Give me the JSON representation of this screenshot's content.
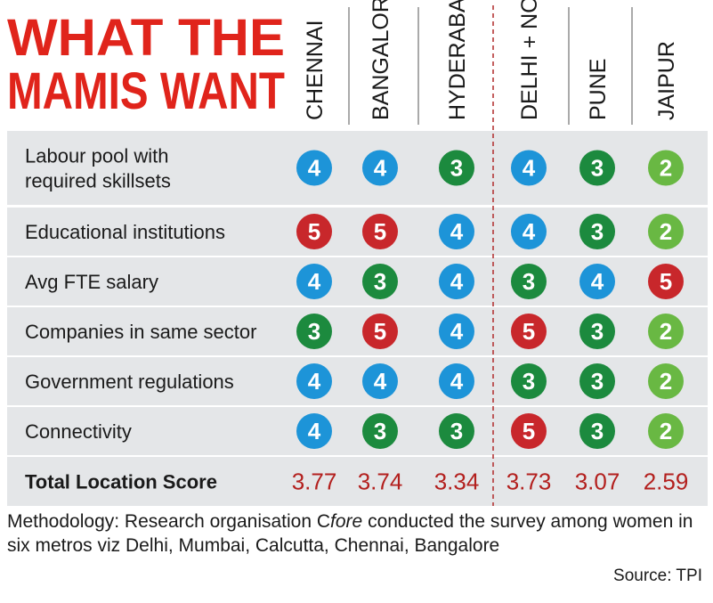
{
  "chart_data": {
    "type": "table",
    "title_lines": [
      "WHAT THE",
      "MAMIS WANT"
    ],
    "columns": [
      "CHENNAI",
      "BANGALORE",
      "HYDERABAD",
      "DELHI + NCR",
      "PUNE",
      "JAIPUR"
    ],
    "rows": [
      {
        "label_lines": [
          "Labour pool with",
          "required skillsets"
        ],
        "values": [
          4,
          4,
          3,
          4,
          3,
          2
        ]
      },
      {
        "label_lines": [
          "Educational institutions"
        ],
        "values": [
          5,
          5,
          4,
          4,
          3,
          2
        ]
      },
      {
        "label_lines": [
          "Avg FTE salary"
        ],
        "values": [
          4,
          3,
          4,
          3,
          4,
          5
        ]
      },
      {
        "label_lines": [
          "Companies in same sector"
        ],
        "values": [
          3,
          5,
          4,
          5,
          3,
          2
        ]
      },
      {
        "label_lines": [
          "Government regulations"
        ],
        "values": [
          4,
          4,
          4,
          3,
          3,
          2
        ]
      },
      {
        "label_lines": [
          "Connectivity"
        ],
        "values": [
          4,
          3,
          3,
          5,
          3,
          2
        ]
      }
    ],
    "total": {
      "label": "Total Location Score",
      "values": [
        "3.77",
        "3.74",
        "3.34",
        "3.73",
        "3.07",
        "2.59"
      ]
    },
    "colors": {
      "5": "#c8272b",
      "4": "#1d94d8",
      "3": "#1c8a3e",
      "2": "#69b843",
      "title": "#e0241b",
      "total": "#b3201e",
      "band": "#e4e6e8",
      "divider": "#b02a2a"
    }
  },
  "footer": {
    "methodology_prefix": "Methodology: Research organisation C",
    "methodology_italic": "fore",
    "methodology_suffix": " conducted the survey among women in six metros viz Delhi, Mumbai, Calcutta, Chennai, Bangalore",
    "source": "Source: TPI"
  }
}
